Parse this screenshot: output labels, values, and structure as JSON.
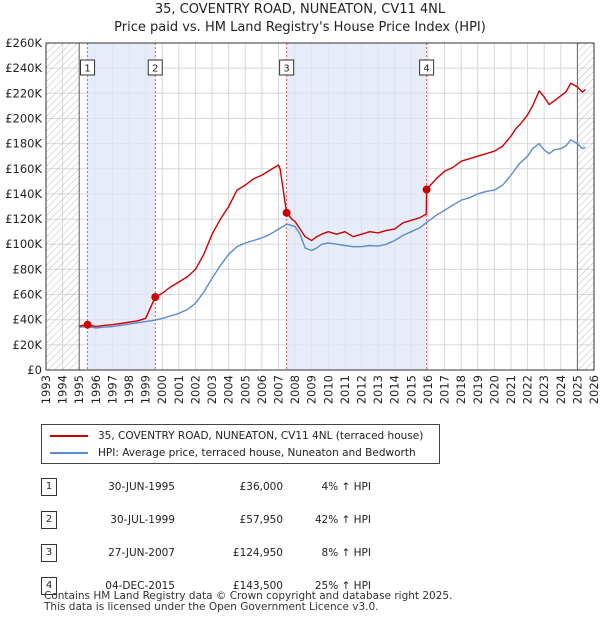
{
  "header": {
    "title_line1": "35, COVENTRY ROAD, NUNEATON, CV11 4NL",
    "title_line2": "Price paid vs. HM Land Registry's House Price Index (HPI)"
  },
  "colors": {
    "property": "#cc0000",
    "hpi": "#5b8ccf",
    "shade": "#dde6f5",
    "hatch": "#bbbbbb",
    "vline": "#e06060",
    "grid": "#d8d8d8"
  },
  "chart_data": {
    "type": "line",
    "title": "35, COVENTRY ROAD, NUNEATON, CV11 4NL — Price paid vs. HM Land Registry's House Price Index (HPI)",
    "xlim": [
      1993,
      2026
    ],
    "ylim": [
      0,
      260000
    ],
    "y_ticks": [
      0,
      20000,
      40000,
      60000,
      80000,
      100000,
      120000,
      140000,
      160000,
      180000,
      200000,
      220000,
      240000,
      260000
    ],
    "y_tick_labels": [
      "£0",
      "£20K",
      "£40K",
      "£60K",
      "£80K",
      "£100K",
      "£120K",
      "£140K",
      "£160K",
      "£180K",
      "£200K",
      "£220K",
      "£240K",
      "£260K"
    ],
    "x_ticks": [
      1993,
      1994,
      1995,
      1996,
      1997,
      1998,
      1999,
      2000,
      2001,
      2002,
      2003,
      2004,
      2005,
      2006,
      2007,
      2008,
      2009,
      2010,
      2011,
      2012,
      2013,
      2014,
      2015,
      2016,
      2017,
      2018,
      2019,
      2020,
      2021,
      2022,
      2023,
      2024,
      2025,
      2026
    ],
    "hatched_periods": [
      [
        1993,
        1995.0
      ],
      [
        2025.0,
        2026
      ]
    ],
    "series": [
      {
        "name": "35, COVENTRY ROAD, NUNEATON, CV11 4NL (terraced house)",
        "color": "#cc0000",
        "x": [
          1995.0,
          1995.5,
          1996,
          1996.5,
          1997,
          1997.5,
          1998,
          1998.5,
          1999,
          1999.58,
          2000,
          2000.5,
          2001,
          2001.5,
          2002,
          2002.5,
          2003,
          2003.5,
          2004,
          2004.5,
          2005,
          2005.5,
          2006,
          2006.5,
          2007,
          2007.1,
          2007.49,
          2007.8,
          2008,
          2008.3,
          2008.6,
          2009,
          2009.3,
          2009.6,
          2010,
          2010.5,
          2011,
          2011.5,
          2012,
          2012.5,
          2013,
          2013.5,
          2014,
          2014.5,
          2015,
          2015.5,
          2015.9,
          2015.92,
          2016.5,
          2017,
          2017.5,
          2018,
          2018.5,
          2019,
          2019.5,
          2020,
          2020.5,
          2021,
          2021.3,
          2021.6,
          2022,
          2022.3,
          2022.7,
          2023,
          2023.3,
          2023.6,
          2024,
          2024.3,
          2024.6,
          2025.0,
          2025.3,
          2025.5
        ],
        "values": [
          35000,
          36000,
          34500,
          35500,
          36000,
          37000,
          38000,
          39000,
          41000,
          57950,
          61000,
          66000,
          70000,
          74000,
          80000,
          92000,
          108000,
          120000,
          130000,
          143000,
          147000,
          152000,
          155000,
          159000,
          163000,
          160000,
          124950,
          120000,
          118000,
          112000,
          106000,
          103000,
          106000,
          108000,
          110000,
          108000,
          110000,
          106000,
          108000,
          110000,
          109000,
          111000,
          112000,
          117000,
          119000,
          121000,
          124000,
          143500,
          152000,
          158000,
          161000,
          166000,
          168000,
          170000,
          172000,
          174000,
          178000,
          186000,
          192000,
          196000,
          203000,
          210000,
          222000,
          217000,
          211000,
          214000,
          218000,
          221000,
          228000,
          225000,
          221000,
          223000
        ]
      },
      {
        "name": "HPI: Average price, terraced house, Nuneaton and Bedworth",
        "color": "#5b8ccf",
        "x": [
          1995.0,
          1995.5,
          1996,
          1996.5,
          1997,
          1997.5,
          1998,
          1998.5,
          1999,
          1999.5,
          2000,
          2000.5,
          2001,
          2001.5,
          2002,
          2002.5,
          2003,
          2003.5,
          2004,
          2004.5,
          2005,
          2005.5,
          2006,
          2006.5,
          2007,
          2007.5,
          2008,
          2008.3,
          2008.6,
          2009,
          2009.3,
          2009.6,
          2010,
          2010.5,
          2011,
          2011.5,
          2012,
          2012.5,
          2013,
          2013.5,
          2014,
          2014.5,
          2015,
          2015.5,
          2016,
          2016.5,
          2017,
          2017.5,
          2018,
          2018.5,
          2019,
          2019.5,
          2020,
          2020.5,
          2021,
          2021.5,
          2022,
          2022.3,
          2022.7,
          2023,
          2023.3,
          2023.6,
          2024,
          2024.3,
          2024.6,
          2025.0,
          2025.3,
          2025.5
        ],
        "values": [
          34000,
          34500,
          33500,
          34000,
          34500,
          35500,
          36500,
          37500,
          38500,
          39500,
          41000,
          43000,
          45000,
          48000,
          53000,
          62000,
          73000,
          83000,
          92000,
          98000,
          101000,
          103000,
          105000,
          108000,
          112000,
          116000,
          114000,
          108000,
          97000,
          95000,
          97000,
          100000,
          101000,
          100000,
          99000,
          98000,
          98000,
          99000,
          98500,
          100000,
          103000,
          107000,
          110000,
          113000,
          118000,
          123000,
          127000,
          131000,
          135000,
          137000,
          140000,
          142000,
          143000,
          147000,
          155000,
          164000,
          170000,
          176000,
          180000,
          175000,
          172000,
          175000,
          176000,
          178000,
          183000,
          180000,
          176000,
          177000
        ]
      }
    ],
    "sales": [
      {
        "n": "1",
        "x": 1995.5,
        "price": 36000
      },
      {
        "n": "2",
        "x": 1999.58,
        "price": 57950
      },
      {
        "n": "3",
        "x": 2007.49,
        "price": 124950
      },
      {
        "n": "4",
        "x": 2015.92,
        "price": 143500
      }
    ]
  },
  "legend": {
    "property_label": "35, COVENTRY ROAD, NUNEATON, CV11 4NL (terraced house)",
    "hpi_label": "HPI: Average price, terraced house, Nuneaton and Bedworth"
  },
  "transactions": [
    {
      "n": "1",
      "date": "30-JUN-1995",
      "price": "£36,000",
      "hpi": "4% ↑ HPI"
    },
    {
      "n": "2",
      "date": "30-JUL-1999",
      "price": "£57,950",
      "hpi": "42% ↑ HPI"
    },
    {
      "n": "3",
      "date": "27-JUN-2007",
      "price": "£124,950",
      "hpi": "8% ↑ HPI"
    },
    {
      "n": "4",
      "date": "04-DEC-2015",
      "price": "£143,500",
      "hpi": "25% ↑ HPI"
    }
  ],
  "footer": {
    "line1": "Contains HM Land Registry data © Crown copyright and database right 2025.",
    "line2": "This data is licensed under the Open Government Licence v3.0."
  }
}
